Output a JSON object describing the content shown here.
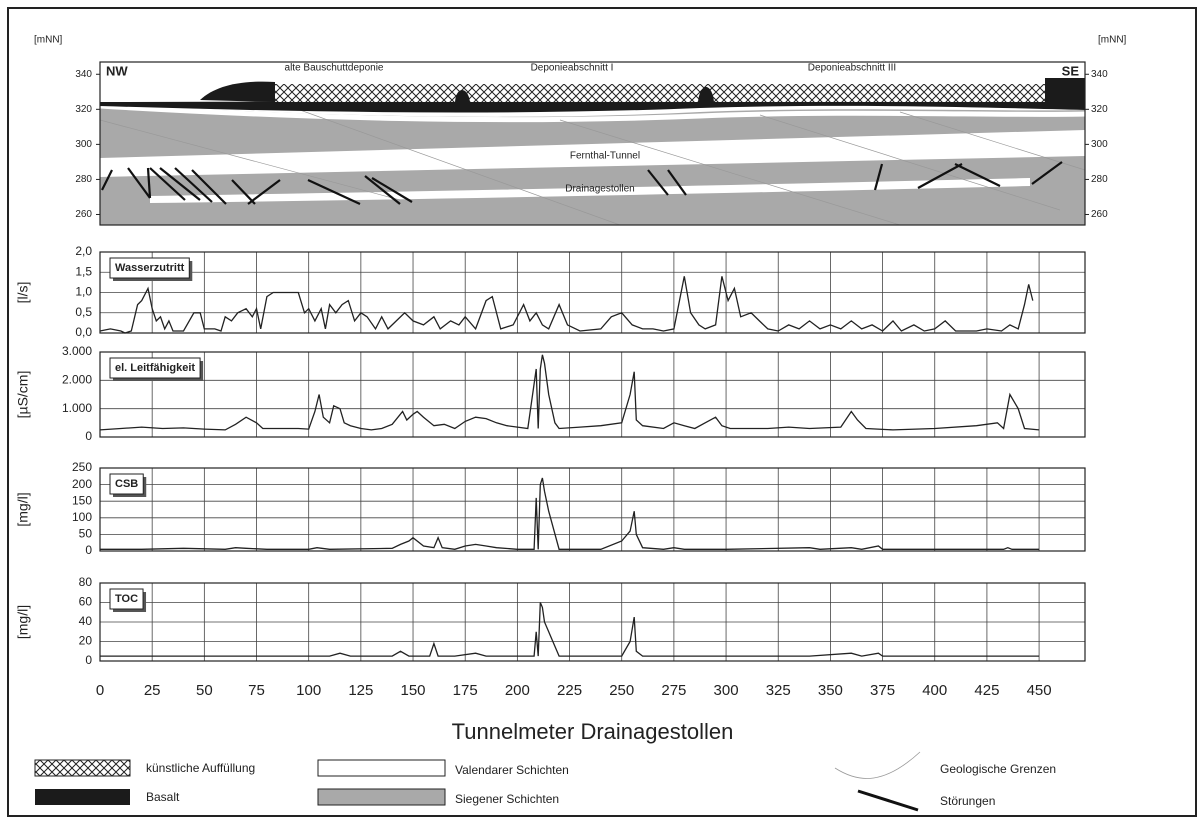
{
  "chart_data": [
    {
      "type": "section",
      "y_label": "[mNN]",
      "ylim": [
        254,
        347
      ],
      "yticks": [
        340,
        320,
        300,
        280,
        260
      ],
      "labels": {
        "nw": "NW",
        "se": "SE",
        "deponie_alt": "alte Bauschuttdeponie",
        "abschnitt1": "Deponieabschnitt I",
        "abschnitt3": "Deponieabschnitt III",
        "tunnel": "Fernthal-Tunnel",
        "stollen": "Drainagestollen"
      }
    },
    {
      "type": "line",
      "title": "Wasserzutritt",
      "y_label": "[l/s]",
      "color": "#222",
      "xlim": [
        0,
        472
      ],
      "xticks": [
        0,
        25,
        50,
        75,
        100,
        125,
        150,
        175,
        200,
        225,
        250,
        275,
        300,
        325,
        350,
        375,
        400,
        425,
        450
      ],
      "ylim": [
        0,
        2
      ],
      "yticks": [
        {
          "value": 0,
          "label": "0,0"
        },
        {
          "value": 0.5,
          "label": "0,5"
        },
        {
          "value": 1,
          "label": "1,0"
        },
        {
          "value": 1.5,
          "label": "1,5"
        },
        {
          "value": 2,
          "label": "2,0"
        }
      ],
      "x": [
        0,
        5,
        10,
        12,
        15,
        18,
        20,
        22,
        23,
        25,
        27,
        29,
        31,
        33,
        35,
        40,
        45,
        48,
        50,
        55,
        58,
        60,
        63,
        66,
        70,
        73,
        75,
        77,
        80,
        83,
        90,
        95,
        98,
        100,
        103,
        106,
        108,
        110,
        113,
        116,
        119,
        122,
        125,
        128,
        132,
        135,
        138,
        142,
        146,
        150,
        155,
        160,
        163,
        168,
        172,
        175,
        180,
        185,
        188,
        192,
        198,
        203,
        206,
        209,
        212,
        215,
        220,
        224,
        230,
        240,
        245,
        250,
        255,
        260,
        265,
        270,
        275,
        280,
        283,
        287,
        290,
        295,
        298,
        301,
        304,
        307,
        312,
        316,
        320,
        325,
        330,
        335,
        340,
        345,
        350,
        355,
        360,
        365,
        370,
        375,
        380,
        384,
        390,
        395,
        400,
        405,
        410,
        420,
        425,
        432,
        436,
        440,
        443,
        445,
        447
      ],
      "values": [
        0.05,
        0.1,
        0.05,
        0,
        0.05,
        0.7,
        0.8,
        1.0,
        1.1,
        0.6,
        0.3,
        0.4,
        0.1,
        0.3,
        0.05,
        0.05,
        0.5,
        0.5,
        0.1,
        0.1,
        0.05,
        0.4,
        0.3,
        0.5,
        0.6,
        0.4,
        0.6,
        0.1,
        0.9,
        1.0,
        1.0,
        1.0,
        0.5,
        0.6,
        0.3,
        0.6,
        0.1,
        0.7,
        0.5,
        0.7,
        0.8,
        0.3,
        0.5,
        0.4,
        0.1,
        0.4,
        0.1,
        0.3,
        0.5,
        0.3,
        0.2,
        0.4,
        0.1,
        0.3,
        0.2,
        0.4,
        0.1,
        0.8,
        0.9,
        0.1,
        0.2,
        0.7,
        0.3,
        0.5,
        0.2,
        0.1,
        0.7,
        0.2,
        0.05,
        0.1,
        0.4,
        0.5,
        0.2,
        0.1,
        0.1,
        0.05,
        0.1,
        1.4,
        0.5,
        0.2,
        0.1,
        0.2,
        1.4,
        0.8,
        1.1,
        0.4,
        0.5,
        0.3,
        0.1,
        0.05,
        0.2,
        0.1,
        0.3,
        0.1,
        0.2,
        0.1,
        0.3,
        0.1,
        0.2,
        0.05,
        0.3,
        0.05,
        0.2,
        0.05,
        0.1,
        0.3,
        0.05,
        0.05,
        0.1,
        0.05,
        0.2,
        0.1,
        0.7,
        1.2,
        0.8
      ]
    },
    {
      "type": "line",
      "title": "el. Leitfähigkeit",
      "y_label": "[µS/cm]",
      "color": "#222",
      "xlim": [
        0,
        472
      ],
      "xticks": [
        0,
        25,
        50,
        75,
        100,
        125,
        150,
        175,
        200,
        225,
        250,
        275,
        300,
        325,
        350,
        375,
        400,
        425,
        450
      ],
      "ylim": [
        0,
        3000
      ],
      "yticks": [
        0,
        {
          "value": 1000,
          "label": "1.000"
        },
        {
          "value": 2000,
          "label": "2.000"
        },
        {
          "value": 3000,
          "label": "3.000"
        }
      ],
      "x": [
        0,
        10,
        20,
        30,
        40,
        50,
        60,
        65,
        70,
        75,
        78,
        85,
        95,
        100,
        103,
        105,
        107,
        110,
        112,
        115,
        117,
        120,
        125,
        130,
        135,
        140,
        145,
        147,
        150,
        152,
        155,
        160,
        165,
        170,
        175,
        180,
        185,
        190,
        195,
        200,
        205,
        209,
        210,
        211,
        212,
        213,
        215,
        218,
        220,
        230,
        240,
        250,
        254,
        256,
        257,
        260,
        270,
        275,
        280,
        285,
        290,
        295,
        298,
        302,
        320,
        330,
        340,
        355,
        360,
        363,
        367,
        380,
        400,
        420,
        430,
        433,
        436,
        440,
        443,
        450
      ],
      "values": [
        250,
        300,
        350,
        300,
        320,
        280,
        250,
        450,
        700,
        500,
        300,
        300,
        300,
        280,
        900,
        1500,
        700,
        500,
        1100,
        1000,
        500,
        400,
        300,
        250,
        300,
        450,
        900,
        600,
        800,
        900,
        700,
        400,
        450,
        300,
        550,
        700,
        650,
        500,
        400,
        350,
        300,
        2400,
        300,
        2400,
        2900,
        2600,
        1500,
        500,
        300,
        350,
        400,
        500,
        1500,
        2300,
        600,
        400,
        300,
        500,
        400,
        300,
        500,
        700,
        400,
        300,
        300,
        350,
        300,
        350,
        900,
        600,
        300,
        250,
        300,
        400,
        500,
        300,
        1500,
        1000,
        300,
        250
      ]
    },
    {
      "type": "line",
      "title": "CSB",
      "y_label": "[mg/l]",
      "color": "#222",
      "xlim": [
        0,
        472
      ],
      "xticks": [
        0,
        25,
        50,
        75,
        100,
        125,
        150,
        175,
        200,
        225,
        250,
        275,
        300,
        325,
        350,
        375,
        400,
        425,
        450
      ],
      "ylim": [
        0,
        250
      ],
      "yticks": [
        0,
        50,
        100,
        150,
        200,
        250
      ],
      "x": [
        0,
        20,
        40,
        60,
        65,
        70,
        80,
        100,
        104,
        110,
        140,
        144,
        148,
        150,
        155,
        160,
        162,
        164,
        170,
        175,
        180,
        185,
        190,
        200,
        208,
        209,
        210,
        211,
        212,
        213,
        215,
        220,
        240,
        250,
        254,
        256,
        257,
        260,
        270,
        275,
        280,
        300,
        340,
        345,
        360,
        365,
        373,
        375,
        400,
        433,
        435,
        437,
        450
      ],
      "values": [
        5,
        5,
        8,
        5,
        10,
        8,
        5,
        5,
        10,
        5,
        8,
        20,
        30,
        40,
        15,
        10,
        40,
        10,
        5,
        15,
        20,
        15,
        10,
        5,
        5,
        160,
        5,
        200,
        220,
        180,
        120,
        5,
        5,
        30,
        60,
        120,
        50,
        10,
        5,
        10,
        5,
        5,
        10,
        5,
        10,
        5,
        15,
        5,
        5,
        5,
        10,
        5,
        5
      ]
    },
    {
      "type": "line",
      "title": "TOC",
      "y_label": "[mg/l]",
      "color": "#222",
      "xlim": [
        0,
        472
      ],
      "xticks": [
        0,
        25,
        50,
        75,
        100,
        125,
        150,
        175,
        200,
        225,
        250,
        275,
        300,
        325,
        350,
        375,
        400,
        425,
        450
      ],
      "xlabel": "Tunnelmeter Drainagestollen",
      "ylim": [
        0,
        80
      ],
      "yticks": [
        0,
        20,
        40,
        60,
        80
      ],
      "x": [
        0,
        50,
        100,
        110,
        115,
        120,
        140,
        144,
        148,
        158,
        160,
        162,
        170,
        180,
        185,
        200,
        208,
        209,
        210,
        211,
        212,
        213,
        215,
        220,
        250,
        254,
        256,
        257,
        260,
        300,
        340,
        360,
        365,
        373,
        375,
        450
      ],
      "values": [
        5,
        5,
        5,
        5,
        8,
        5,
        5,
        10,
        5,
        5,
        18,
        5,
        5,
        8,
        5,
        5,
        5,
        30,
        5,
        60,
        55,
        40,
        30,
        5,
        5,
        20,
        45,
        10,
        5,
        5,
        5,
        8,
        5,
        8,
        5,
        5
      ]
    }
  ],
  "legend": [
    {
      "label": "künstliche Auffüllung"
    },
    {
      "label": "Basalt"
    },
    {
      "label": "Valendarer Schichten"
    },
    {
      "label": "Siegener Schichten"
    },
    {
      "label": "Geologische Grenzen"
    },
    {
      "label": "Störungen"
    }
  ]
}
